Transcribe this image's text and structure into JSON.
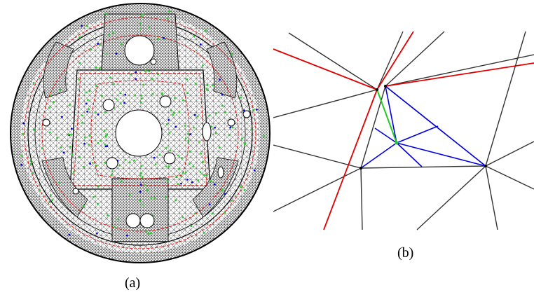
{
  "panels": [
    {
      "caption": "(a)"
    },
    {
      "caption": "(b)"
    }
  ],
  "colors": {
    "mesh": "#000000",
    "red": "#e00000",
    "green": "#22cc22",
    "blue": "#0000e0",
    "dark": "#333333"
  }
}
